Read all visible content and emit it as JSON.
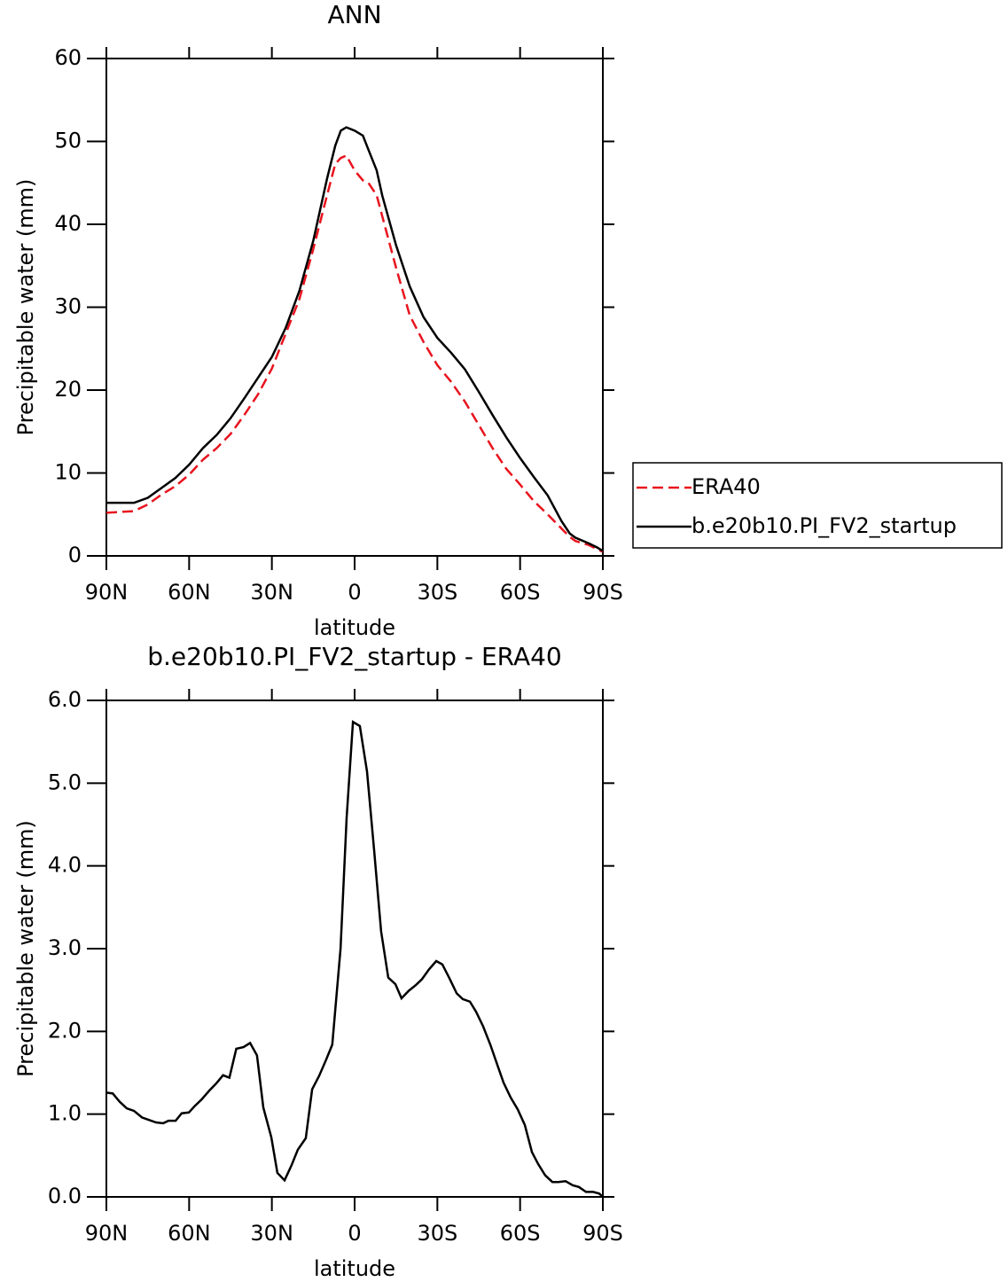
{
  "chart_data": [
    {
      "type": "line",
      "title": "ANN",
      "x_label": "latitude",
      "y_label": "Precipitable water (mm)",
      "x": [
        90,
        85,
        80,
        75,
        70,
        65,
        60,
        55,
        50,
        45,
        40,
        35,
        30,
        25,
        20,
        15,
        10,
        7,
        5,
        3,
        0,
        -3,
        -5,
        -8,
        -10,
        -15,
        -20,
        -25,
        -30,
        -35,
        -40,
        -45,
        -50,
        -55,
        -60,
        -65,
        -70,
        -75,
        -78,
        -80,
        -85,
        -88,
        -90
      ],
      "series": [
        {
          "name": "ERA40",
          "color": "#e8141e",
          "dash": "dashed",
          "values": [
            5.2,
            5.3,
            5.4,
            6.2,
            7.4,
            8.4,
            9.8,
            11.6,
            13.0,
            14.7,
            17.0,
            19.5,
            22.6,
            26.8,
            31.0,
            37.0,
            43.5,
            47.3,
            48.0,
            48.3,
            46.5,
            45.3,
            45.0,
            43.5,
            41.0,
            34.8,
            29.0,
            25.8,
            23.0,
            21.0,
            18.6,
            15.8,
            13.0,
            10.5,
            8.6,
            6.6,
            5.0,
            3.3,
            2.3,
            1.8,
            1.3,
            0.8,
            0.5
          ]
        },
        {
          "name": "b.e20b10.PI_FV2_startup",
          "color": "#000000",
          "dash": "solid",
          "values": [
            6.4,
            6.4,
            6.4,
            7.0,
            8.2,
            9.4,
            11.0,
            13.0,
            14.6,
            16.6,
            19.0,
            21.5,
            24.0,
            27.5,
            32.0,
            38.0,
            45.5,
            49.5,
            51.3,
            51.7,
            51.3,
            50.7,
            49.0,
            46.5,
            43.5,
            37.5,
            32.5,
            28.8,
            26.3,
            24.5,
            22.5,
            19.8,
            17.0,
            14.3,
            11.8,
            9.5,
            7.3,
            4.2,
            2.7,
            2.2,
            1.5,
            1.0,
            0.6
          ]
        }
      ],
      "xlim": [
        90,
        -90
      ],
      "xticks": [
        {
          "value": 90,
          "label": "90N"
        },
        {
          "value": 60,
          "label": "60N"
        },
        {
          "value": 30,
          "label": "30N"
        },
        0,
        {
          "value": -30,
          "label": "30S"
        },
        {
          "value": -60,
          "label": "60S"
        },
        {
          "value": -90,
          "label": "90S"
        }
      ],
      "ylim": [
        0,
        60
      ],
      "yticks": [
        0,
        10,
        20,
        30,
        40,
        50,
        60
      ],
      "legend": "right"
    },
    {
      "type": "line",
      "title": "b.e20b10.PI_FV2_startup - ERA40",
      "x_label": "latitude",
      "y_label": "Precipitable water (mm)",
      "x": [
        90,
        87.7,
        85.2,
        82.6,
        80.0,
        77.1,
        74.6,
        72.0,
        69.4,
        67.5,
        64.9,
        62.7,
        60.1,
        57.9,
        55.4,
        52.8,
        50.2,
        47.7,
        45.4,
        42.9,
        40.3,
        37.9,
        35.4,
        33.1,
        30.2,
        28.0,
        25.4,
        22.9,
        20.6,
        17.7,
        15.4,
        12.9,
        10.3,
        8.1,
        5.1,
        2.9,
        0.6,
        -1.9,
        -4.5,
        -7.1,
        -9.6,
        -12.2,
        -14.8,
        -17.0,
        -19.6,
        -22.2,
        -24.4,
        -27.0,
        -29.6,
        -31.8,
        -34.4,
        -37.0,
        -39.2,
        -41.8,
        -44.0,
        -46.6,
        -49.2,
        -51.7,
        -54.0,
        -56.6,
        -59.1,
        -61.7,
        -64.3,
        -66.5,
        -69.1,
        -71.7,
        -73.9,
        -76.5,
        -79.1,
        -81.3,
        -83.9,
        -86.5,
        -88.7,
        -90
      ],
      "series": [
        {
          "name": "b.e20b10.PI_FV2_startup - ERA40",
          "color": "#000000",
          "dash": "solid",
          "values": [
            1.26,
            1.25,
            1.15,
            1.07,
            1.04,
            0.96,
            0.93,
            0.9,
            0.89,
            0.92,
            0.92,
            1.01,
            1.02,
            1.1,
            1.18,
            1.28,
            1.37,
            1.47,
            1.44,
            1.79,
            1.81,
            1.86,
            1.71,
            1.08,
            0.72,
            0.29,
            0.2,
            0.38,
            0.57,
            0.71,
            1.3,
            1.46,
            1.66,
            1.84,
            3.0,
            4.58,
            5.74,
            5.69,
            5.14,
            4.18,
            3.21,
            2.65,
            2.57,
            2.4,
            2.49,
            2.56,
            2.63,
            2.75,
            2.85,
            2.81,
            2.64,
            2.46,
            2.39,
            2.36,
            2.24,
            2.06,
            1.84,
            1.6,
            1.38,
            1.2,
            1.06,
            0.87,
            0.54,
            0.4,
            0.26,
            0.18,
            0.18,
            0.19,
            0.14,
            0.12,
            0.06,
            0.06,
            0.04,
            0.0
          ]
        }
      ],
      "xlim": [
        90,
        -90
      ],
      "xticks": [
        {
          "value": 90,
          "label": "90N"
        },
        {
          "value": 60,
          "label": "60N"
        },
        {
          "value": 30,
          "label": "30N"
        },
        0,
        {
          "value": -30,
          "label": "30S"
        },
        {
          "value": -60,
          "label": "60S"
        },
        {
          "value": -90,
          "label": "90S"
        }
      ],
      "ylim": [
        0,
        6
      ],
      "yticks": [
        {
          "value": 0,
          "label": "0.0"
        },
        {
          "value": 1,
          "label": "1.0"
        },
        {
          "value": 2,
          "label": "2.0"
        },
        {
          "value": 3,
          "label": "3.0"
        },
        {
          "value": 4,
          "label": "4.0"
        },
        {
          "value": 5,
          "label": "5.0"
        },
        {
          "value": 6,
          "label": "6.0"
        }
      ]
    }
  ]
}
